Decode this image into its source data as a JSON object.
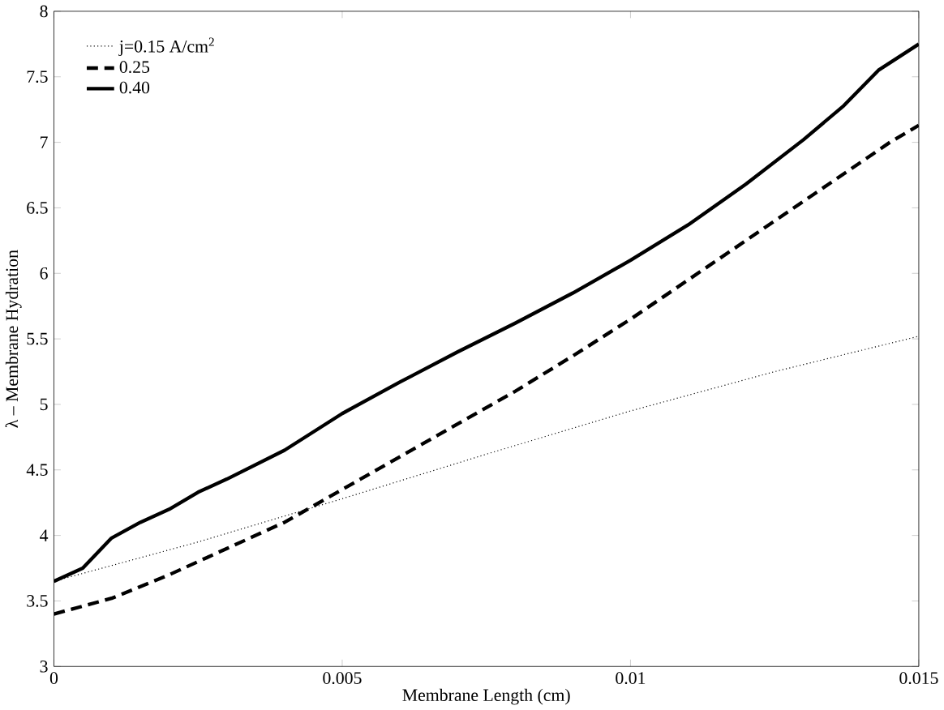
{
  "chart_data": {
    "type": "line",
    "xlabel": "Membrane Length (cm)",
    "ylabel": "λ – Membrane Hydration",
    "xlim": [
      0,
      0.015
    ],
    "ylim": [
      3,
      8
    ],
    "xticks": [
      0,
      0.005,
      0.01,
      0.015
    ],
    "yticks": [
      3,
      3.5,
      4,
      4.5,
      5,
      5.5,
      6,
      6.5,
      7,
      7.5,
      8
    ],
    "grid": false,
    "legend": "top left",
    "marker": "none",
    "series": [
      {
        "name": "j=0.15 A/cm$^{2}$",
        "color": "#000000",
        "line_style": "dotted",
        "x": [
          0,
          0.0025,
          0.005,
          0.0075,
          0.01,
          0.0125,
          0.015
        ],
        "values": [
          3.65,
          3.95,
          4.28,
          4.62,
          4.95,
          5.25,
          5.52
        ]
      },
      {
        "name": "0.25",
        "color": "#000000",
        "line_style": "dashed",
        "x": [
          0,
          0.001,
          0.002,
          0.003,
          0.004,
          0.005,
          0.006,
          0.007,
          0.008,
          0.009,
          0.01,
          0.011,
          0.012,
          0.013,
          0.014,
          0.0145,
          0.015
        ],
        "values": [
          3.4,
          3.52,
          3.7,
          3.9,
          4.1,
          4.35,
          4.6,
          4.85,
          5.1,
          5.37,
          5.65,
          5.95,
          6.25,
          6.55,
          6.85,
          7.0,
          7.13
        ]
      },
      {
        "name": "0.40",
        "color": "#000000",
        "line_style": "solid",
        "x": [
          0,
          0.0005,
          0.001,
          0.0015,
          0.002,
          0.0025,
          0.003,
          0.004,
          0.005,
          0.006,
          0.007,
          0.008,
          0.009,
          0.01,
          0.011,
          0.012,
          0.013,
          0.0137,
          0.0143,
          0.015
        ],
        "values": [
          3.65,
          3.75,
          3.98,
          4.1,
          4.2,
          4.33,
          4.43,
          4.65,
          4.93,
          5.17,
          5.4,
          5.62,
          5.85,
          6.1,
          6.37,
          6.68,
          7.02,
          7.28,
          7.55,
          7.75
        ]
      }
    ]
  }
}
